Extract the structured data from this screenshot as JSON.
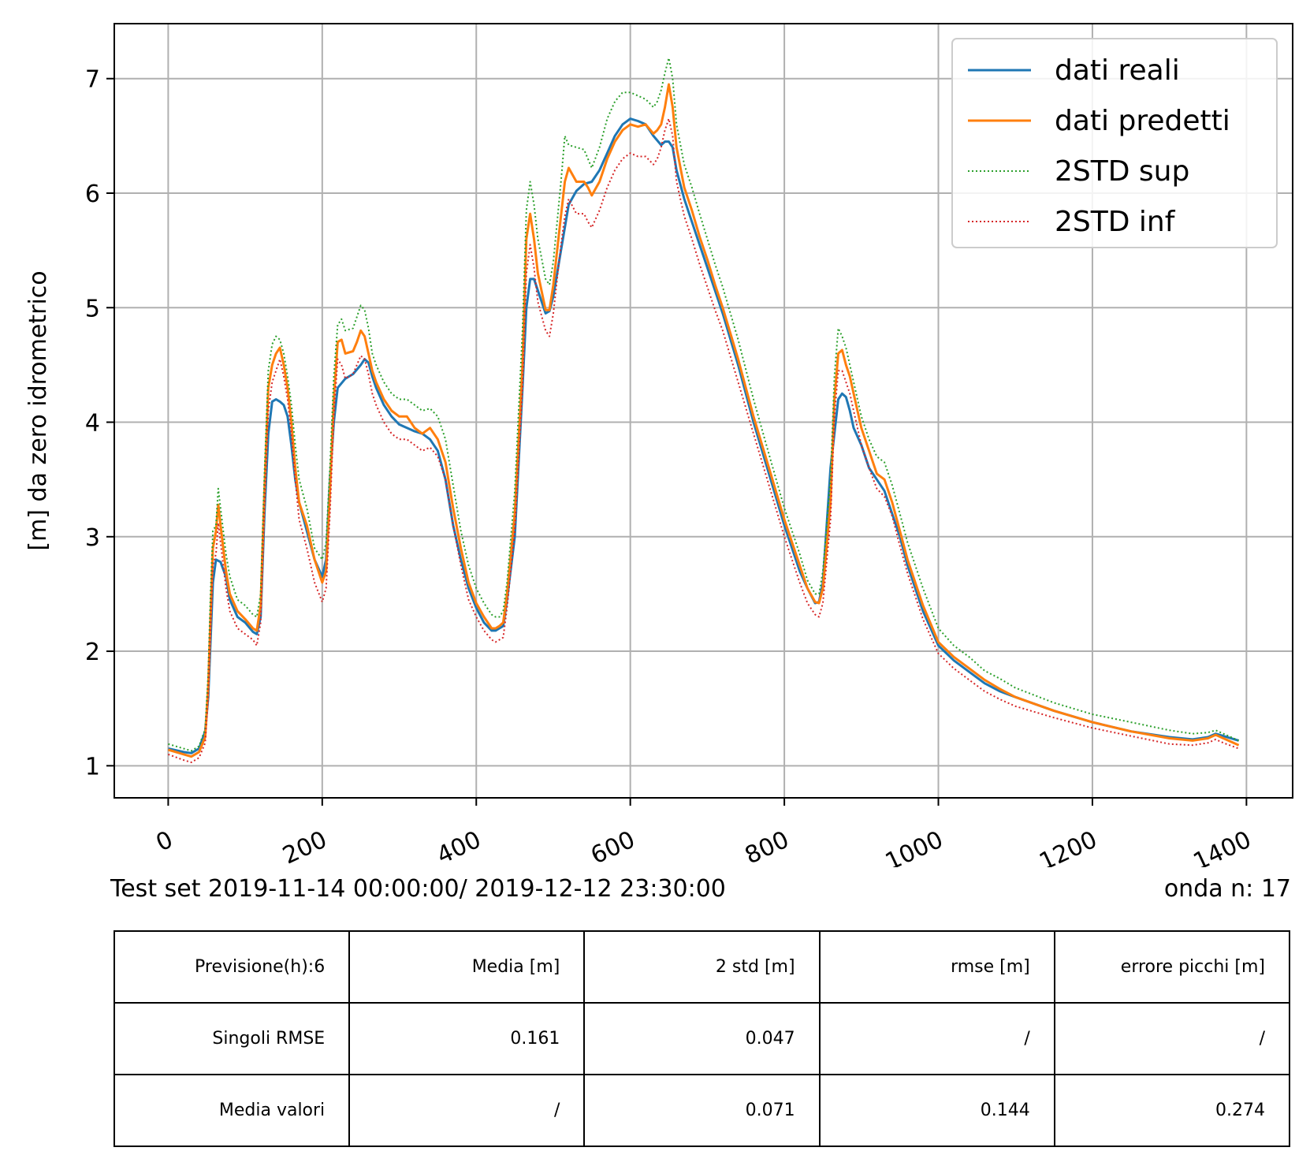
{
  "chart_data": {
    "type": "line",
    "title": "",
    "ylabel": "[m] da zero idrometrico",
    "xlabel": "",
    "xlim": [
      -70,
      1460
    ],
    "ylim": [
      0.72,
      7.48
    ],
    "xticks": [
      0,
      200,
      400,
      600,
      800,
      1000,
      1200,
      1400
    ],
    "yticks": [
      1,
      2,
      3,
      4,
      5,
      6,
      7
    ],
    "grid": true,
    "legend_position": "top-right",
    "series": [
      {
        "name": "dati reali",
        "color": "#1f77b4",
        "style": "solid",
        "x": [
          0,
          20,
          30,
          40,
          48,
          52,
          58,
          62,
          68,
          75,
          80,
          90,
          100,
          110,
          115,
          120,
          125,
          130,
          135,
          140,
          145,
          150,
          155,
          160,
          165,
          170,
          180,
          190,
          200,
          205,
          210,
          215,
          220,
          230,
          240,
          250,
          255,
          260,
          265,
          270,
          280,
          290,
          300,
          310,
          320,
          330,
          340,
          350,
          360,
          370,
          380,
          390,
          400,
          410,
          420,
          425,
          430,
          435,
          440,
          450,
          460,
          465,
          470,
          475,
          480,
          490,
          495,
          500,
          510,
          520,
          530,
          540,
          550,
          560,
          570,
          580,
          590,
          600,
          610,
          620,
          630,
          640,
          645,
          650,
          655,
          660,
          670,
          680,
          690,
          700,
          710,
          720,
          740,
          760,
          780,
          800,
          820,
          830,
          840,
          845,
          850,
          860,
          870,
          875,
          880,
          885,
          890,
          900,
          910,
          920,
          930,
          940,
          950,
          960,
          980,
          1000,
          1020,
          1040,
          1060,
          1080,
          1100,
          1150,
          1200,
          1250,
          1300,
          1330,
          1350,
          1360,
          1370,
          1390
        ],
        "y": [
          1.15,
          1.12,
          1.11,
          1.15,
          1.3,
          1.6,
          2.6,
          2.8,
          2.78,
          2.65,
          2.45,
          2.3,
          2.25,
          2.17,
          2.15,
          2.3,
          3.2,
          3.9,
          4.18,
          4.2,
          4.18,
          4.15,
          4.05,
          3.8,
          3.5,
          3.3,
          3.05,
          2.8,
          2.65,
          2.8,
          3.5,
          4.0,
          4.3,
          4.38,
          4.42,
          4.5,
          4.55,
          4.52,
          4.4,
          4.3,
          4.15,
          4.05,
          3.98,
          3.95,
          3.92,
          3.9,
          3.85,
          3.75,
          3.5,
          3.1,
          2.8,
          2.55,
          2.38,
          2.25,
          2.18,
          2.18,
          2.2,
          2.22,
          2.45,
          3.0,
          4.3,
          5.0,
          5.25,
          5.25,
          5.15,
          4.95,
          4.97,
          5.1,
          5.5,
          5.9,
          6.02,
          6.08,
          6.1,
          6.2,
          6.35,
          6.5,
          6.6,
          6.65,
          6.63,
          6.6,
          6.5,
          6.42,
          6.45,
          6.45,
          6.4,
          6.2,
          5.95,
          5.75,
          5.55,
          5.35,
          5.15,
          4.95,
          4.5,
          4.0,
          3.55,
          3.1,
          2.7,
          2.55,
          2.42,
          2.43,
          2.6,
          3.6,
          4.2,
          4.25,
          4.22,
          4.1,
          3.95,
          3.8,
          3.6,
          3.5,
          3.4,
          3.2,
          3.0,
          2.75,
          2.35,
          2.05,
          1.92,
          1.82,
          1.72,
          1.65,
          1.6,
          1.48,
          1.38,
          1.3,
          1.25,
          1.23,
          1.25,
          1.28,
          1.26,
          1.22
        ]
      },
      {
        "name": "dati predetti",
        "color": "#ff7f0e",
        "style": "solid",
        "x": [
          0,
          20,
          30,
          40,
          48,
          52,
          55,
          58,
          62,
          65,
          68,
          75,
          80,
          90,
          100,
          110,
          115,
          120,
          125,
          130,
          135,
          140,
          145,
          150,
          155,
          160,
          165,
          170,
          180,
          190,
          200,
          205,
          210,
          215,
          220,
          225,
          230,
          240,
          245,
          250,
          255,
          260,
          265,
          270,
          280,
          290,
          300,
          310,
          320,
          330,
          340,
          350,
          360,
          370,
          380,
          390,
          400,
          410,
          420,
          425,
          430,
          435,
          440,
          450,
          460,
          465,
          470,
          475,
          480,
          490,
          495,
          500,
          510,
          515,
          520,
          530,
          540,
          545,
          550,
          560,
          570,
          580,
          590,
          600,
          610,
          620,
          630,
          635,
          640,
          645,
          650,
          655,
          660,
          670,
          680,
          690,
          700,
          710,
          720,
          740,
          760,
          780,
          800,
          820,
          830,
          840,
          845,
          850,
          860,
          865,
          870,
          875,
          880,
          885,
          890,
          900,
          910,
          920,
          930,
          940,
          950,
          960,
          980,
          1000,
          1020,
          1040,
          1060,
          1080,
          1100,
          1150,
          1200,
          1250,
          1300,
          1330,
          1350,
          1360,
          1370,
          1390
        ],
        "y": [
          1.14,
          1.1,
          1.08,
          1.12,
          1.25,
          1.7,
          2.3,
          2.9,
          3.05,
          3.28,
          3.1,
          2.7,
          2.5,
          2.35,
          2.28,
          2.2,
          2.18,
          2.4,
          3.4,
          4.3,
          4.5,
          4.6,
          4.65,
          4.5,
          4.3,
          4.0,
          3.6,
          3.3,
          3.1,
          2.8,
          2.6,
          2.7,
          3.4,
          4.2,
          4.7,
          4.72,
          4.6,
          4.62,
          4.7,
          4.8,
          4.75,
          4.6,
          4.45,
          4.35,
          4.2,
          4.1,
          4.05,
          4.05,
          3.95,
          3.9,
          3.95,
          3.85,
          3.65,
          3.25,
          2.9,
          2.6,
          2.42,
          2.3,
          2.2,
          2.2,
          2.22,
          2.25,
          2.5,
          3.2,
          4.5,
          5.6,
          5.82,
          5.6,
          5.3,
          4.98,
          4.98,
          5.2,
          5.8,
          6.1,
          6.22,
          6.1,
          6.1,
          6.05,
          5.98,
          6.1,
          6.3,
          6.45,
          6.55,
          6.6,
          6.58,
          6.6,
          6.52,
          6.55,
          6.6,
          6.75,
          6.95,
          6.75,
          6.4,
          6.05,
          5.85,
          5.62,
          5.42,
          5.2,
          5.0,
          4.55,
          4.05,
          3.6,
          3.15,
          2.75,
          2.55,
          2.43,
          2.42,
          2.55,
          3.3,
          4.2,
          4.6,
          4.63,
          4.5,
          4.4,
          4.25,
          3.95,
          3.75,
          3.55,
          3.5,
          3.3,
          3.05,
          2.8,
          2.4,
          2.08,
          1.95,
          1.85,
          1.75,
          1.67,
          1.6,
          1.48,
          1.38,
          1.3,
          1.24,
          1.22,
          1.24,
          1.27,
          1.24,
          1.18
        ]
      },
      {
        "name": "2STD sup",
        "color": "#2ca02c",
        "style": "dotted",
        "x": [
          0,
          20,
          30,
          40,
          48,
          52,
          55,
          58,
          62,
          65,
          68,
          75,
          80,
          90,
          100,
          110,
          115,
          120,
          125,
          130,
          135,
          140,
          145,
          150,
          155,
          160,
          165,
          170,
          180,
          190,
          200,
          205,
          210,
          215,
          220,
          225,
          230,
          240,
          245,
          250,
          255,
          260,
          265,
          270,
          280,
          290,
          300,
          310,
          320,
          330,
          340,
          350,
          360,
          370,
          380,
          390,
          400,
          410,
          420,
          425,
          430,
          435,
          440,
          450,
          460,
          465,
          470,
          475,
          480,
          490,
          495,
          500,
          510,
          515,
          520,
          530,
          540,
          545,
          550,
          560,
          570,
          580,
          590,
          600,
          610,
          620,
          630,
          635,
          640,
          645,
          650,
          655,
          660,
          670,
          680,
          690,
          700,
          710,
          720,
          740,
          760,
          780,
          800,
          820,
          830,
          840,
          845,
          850,
          860,
          865,
          870,
          875,
          880,
          885,
          890,
          900,
          910,
          920,
          930,
          940,
          950,
          960,
          980,
          1000,
          1020,
          1040,
          1060,
          1080,
          1100,
          1150,
          1200,
          1250,
          1300,
          1330,
          1350,
          1360,
          1370,
          1390
        ],
        "y": [
          1.19,
          1.15,
          1.13,
          1.17,
          1.32,
          1.8,
          2.5,
          3.05,
          3.1,
          3.42,
          3.25,
          2.85,
          2.65,
          2.45,
          2.4,
          2.32,
          2.3,
          2.5,
          3.55,
          4.45,
          4.68,
          4.75,
          4.72,
          4.6,
          4.4,
          4.15,
          3.8,
          3.5,
          3.25,
          2.9,
          2.8,
          2.95,
          3.6,
          4.4,
          4.85,
          4.9,
          4.8,
          4.82,
          4.92,
          5.02,
          4.98,
          4.82,
          4.6,
          4.5,
          4.35,
          4.25,
          4.2,
          4.2,
          4.15,
          4.1,
          4.12,
          4.05,
          3.85,
          3.45,
          3.05,
          2.75,
          2.55,
          2.42,
          2.32,
          2.3,
          2.3,
          2.35,
          2.6,
          3.4,
          4.8,
          5.85,
          6.1,
          5.9,
          5.6,
          5.25,
          5.2,
          5.4,
          6.1,
          6.5,
          6.42,
          6.4,
          6.38,
          6.3,
          6.22,
          6.4,
          6.65,
          6.8,
          6.88,
          6.88,
          6.85,
          6.82,
          6.75,
          6.8,
          6.9,
          7.05,
          7.18,
          7.0,
          6.6,
          6.25,
          6.05,
          5.82,
          5.6,
          5.38,
          5.18,
          4.72,
          4.2,
          3.72,
          3.25,
          2.85,
          2.62,
          2.5,
          2.5,
          2.7,
          3.5,
          4.4,
          4.82,
          4.75,
          4.65,
          4.5,
          4.35,
          4.05,
          3.85,
          3.7,
          3.65,
          3.45,
          3.2,
          2.95,
          2.55,
          2.2,
          2.05,
          1.95,
          1.83,
          1.76,
          1.68,
          1.55,
          1.45,
          1.38,
          1.31,
          1.28,
          1.29,
          1.31,
          1.28,
          1.22
        ]
      },
      {
        "name": "2STD inf",
        "color": "#d62728",
        "style": "dotted",
        "x": [
          0,
          20,
          30,
          40,
          48,
          52,
          55,
          58,
          62,
          65,
          68,
          75,
          80,
          90,
          100,
          110,
          115,
          120,
          125,
          130,
          135,
          140,
          145,
          150,
          155,
          160,
          165,
          170,
          180,
          190,
          200,
          205,
          210,
          215,
          220,
          225,
          230,
          240,
          245,
          250,
          255,
          260,
          265,
          270,
          280,
          290,
          300,
          310,
          320,
          330,
          340,
          350,
          360,
          370,
          380,
          390,
          400,
          410,
          420,
          425,
          430,
          435,
          440,
          450,
          460,
          465,
          470,
          475,
          480,
          490,
          495,
          500,
          510,
          515,
          520,
          530,
          540,
          545,
          550,
          560,
          570,
          580,
          590,
          600,
          610,
          620,
          630,
          635,
          640,
          645,
          650,
          655,
          660,
          670,
          680,
          690,
          700,
          710,
          720,
          740,
          760,
          780,
          800,
          820,
          830,
          840,
          845,
          850,
          860,
          865,
          870,
          875,
          880,
          885,
          890,
          900,
          910,
          920,
          930,
          940,
          950,
          960,
          980,
          1000,
          1020,
          1040,
          1060,
          1080,
          1100,
          1150,
          1200,
          1250,
          1300,
          1330,
          1350,
          1360,
          1370,
          1390
        ],
        "y": [
          1.1,
          1.05,
          1.03,
          1.07,
          1.2,
          1.6,
          2.2,
          2.75,
          2.85,
          3.12,
          2.95,
          2.55,
          2.35,
          2.2,
          2.15,
          2.1,
          2.05,
          2.25,
          3.25,
          4.1,
          4.35,
          4.45,
          4.55,
          4.4,
          4.2,
          3.9,
          3.5,
          3.15,
          2.9,
          2.6,
          2.43,
          2.55,
          3.2,
          4.05,
          4.55,
          4.5,
          4.38,
          4.42,
          4.5,
          4.58,
          4.55,
          4.42,
          4.25,
          4.15,
          4.0,
          3.9,
          3.85,
          3.85,
          3.8,
          3.75,
          3.78,
          3.7,
          3.5,
          3.1,
          2.75,
          2.45,
          2.3,
          2.18,
          2.1,
          2.08,
          2.1,
          2.12,
          2.38,
          3.05,
          4.3,
          5.3,
          5.55,
          5.35,
          5.05,
          4.8,
          4.75,
          4.95,
          5.55,
          5.8,
          5.95,
          5.82,
          5.82,
          5.75,
          5.7,
          5.85,
          6.05,
          6.2,
          6.3,
          6.35,
          6.32,
          6.32,
          6.25,
          6.3,
          6.4,
          6.55,
          6.65,
          6.5,
          6.1,
          5.8,
          5.6,
          5.38,
          5.18,
          4.98,
          4.8,
          4.35,
          3.9,
          3.45,
          3.0,
          2.6,
          2.42,
          2.32,
          2.3,
          2.42,
          3.15,
          4.05,
          4.45,
          4.45,
          4.35,
          4.25,
          4.1,
          3.8,
          3.6,
          3.42,
          3.35,
          3.18,
          2.92,
          2.68,
          2.28,
          1.98,
          1.85,
          1.75,
          1.65,
          1.58,
          1.52,
          1.42,
          1.33,
          1.26,
          1.19,
          1.18,
          1.2,
          1.23,
          1.2,
          1.15
        ]
      }
    ]
  },
  "caption": {
    "left": "Test set  2019-11-14 00:00:00/ 2019-12-12 23:30:00",
    "right": "onda n: 17"
  },
  "table": {
    "rows": [
      [
        "Previsione(h):6",
        "Media [m]",
        "2 std [m]",
        "rmse [m]",
        "errore picchi [m]"
      ],
      [
        "Singoli RMSE",
        "0.161",
        "0.047",
        "/",
        "/"
      ],
      [
        "Media valori",
        "/",
        "0.071",
        "0.144",
        "0.274"
      ]
    ]
  }
}
